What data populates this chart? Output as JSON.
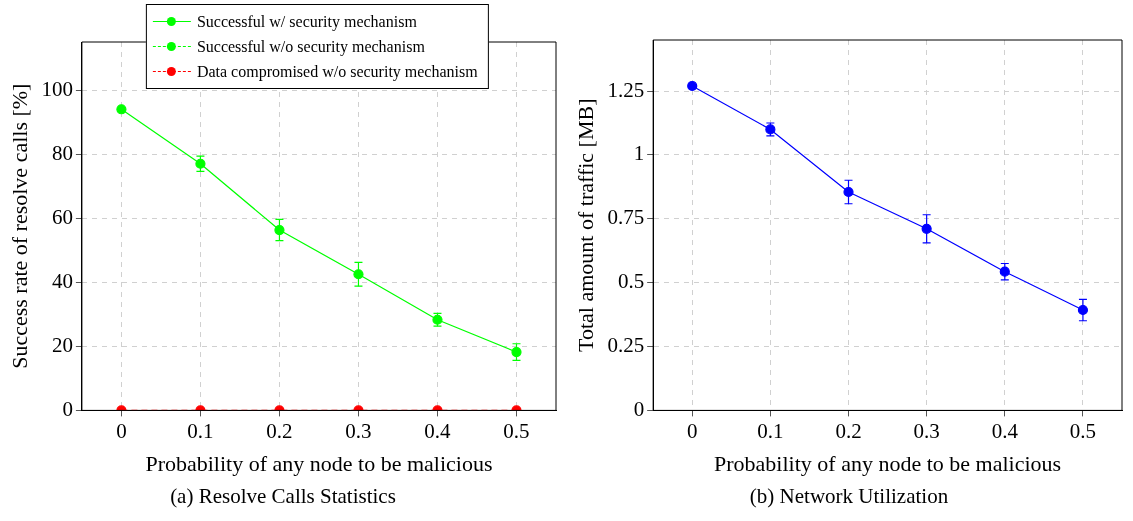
{
  "chart_data": [
    {
      "type": "line",
      "title": "(a) Resolve Calls Statistics",
      "xlabel": "Probability of any node to be malicious",
      "ylabel": "Success rate of resolve calls [%]",
      "x": [
        0,
        0.1,
        0.2,
        0.3,
        0.4,
        0.5
      ],
      "xlim": [
        -0.05,
        0.55
      ],
      "xticks": [
        0,
        0.1,
        0.2,
        0.3,
        0.4,
        0.5
      ],
      "ylim": [
        0,
        115
      ],
      "yticks": [
        0,
        20,
        40,
        60,
        80,
        100
      ],
      "grid": true,
      "legend": "top",
      "marker": "circle",
      "series": [
        {
          "name": "Successful w/ security mechanism",
          "color": "#00ff00",
          "line_style": "solid",
          "values": [
            94,
            77,
            56.3,
            42.5,
            28.3,
            18.2
          ],
          "errors": [
            null,
            2.4,
            3.3,
            3.7,
            2,
            2.6
          ]
        },
        {
          "name": "Successful w/o security mechanism",
          "color": "#00ff00",
          "line_style": "dashed",
          "values": [
            null,
            null,
            null,
            null,
            null,
            null
          ]
        },
        {
          "name": "Data compromised w/o security mechanism",
          "color": "#ff0000",
          "line_style": "dashed",
          "values": [
            0,
            0,
            0,
            0,
            0,
            0
          ]
        }
      ]
    },
    {
      "type": "line",
      "title": "(b) Network Utilization",
      "xlabel": "Probability of any node to be malicious",
      "ylabel": "Total amount of traffic [MB]",
      "x": [
        0,
        0.1,
        0.2,
        0.3,
        0.4,
        0.5
      ],
      "xlim": [
        -0.05,
        0.55
      ],
      "xticks": [
        0,
        0.1,
        0.2,
        0.3,
        0.4,
        0.5
      ],
      "ylim": [
        0,
        1.45
      ],
      "yticks": [
        0,
        0.25,
        0.5,
        0.75,
        1,
        1.25
      ],
      "grid": true,
      "marker": "circle",
      "series": [
        {
          "color": "#0000ff",
          "line_style": "solid",
          "values": [
            1.27,
            1.1,
            0.855,
            0.711,
            0.543,
            0.393
          ],
          "errors": [
            null,
            0.025,
            0.046,
            0.055,
            0.032,
            0.042
          ]
        }
      ]
    }
  ]
}
